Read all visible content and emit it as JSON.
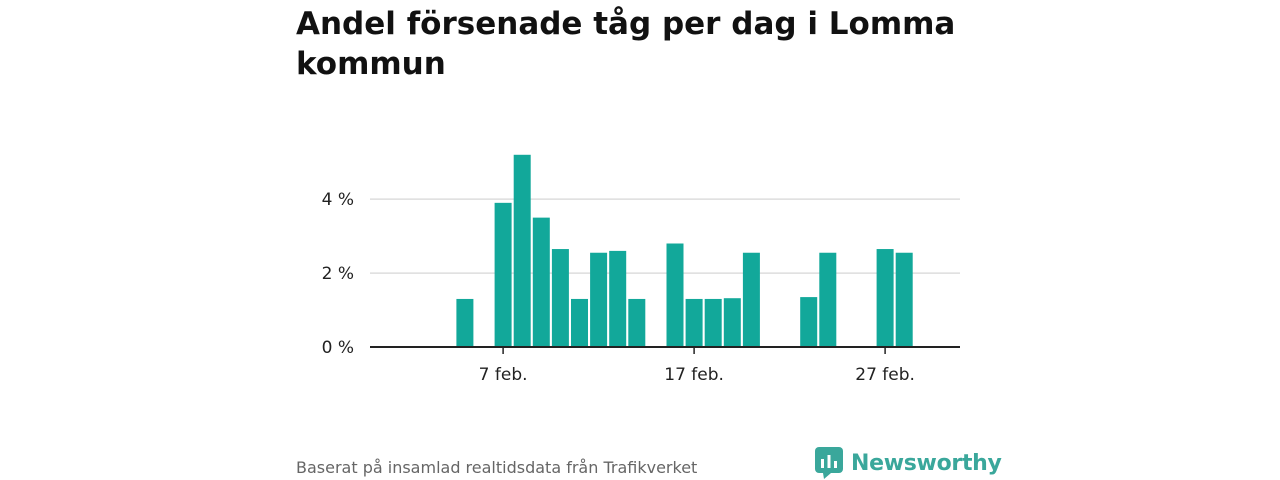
{
  "title": "Andel försenade tåg per dag i Lomma kommun",
  "source": "Baserat på insamlad realtidsdata från Trafikverket",
  "brand": {
    "name": "Newsworthy",
    "icon": "newsworthy-logo-icon",
    "color": "#3aa79b"
  },
  "colors": {
    "bar": "#12a89a",
    "grid": "#dddddd",
    "axis": "#222222"
  },
  "chart_data": {
    "type": "bar",
    "title": "Andel försenade tåg per dag i Lomma kommun",
    "xlabel": "",
    "ylabel": "",
    "ylim": [
      0,
      5.6
    ],
    "yticks": [
      0,
      2,
      4
    ],
    "ytick_labels": [
      "0 %",
      "2 %",
      "4 %"
    ],
    "x_days": [
      1,
      2,
      3,
      4,
      5,
      6,
      7,
      8,
      9,
      10,
      11,
      12,
      13,
      14,
      15,
      16,
      17,
      18,
      19,
      20,
      21,
      22,
      23,
      24,
      25,
      26,
      27,
      28
    ],
    "xticks": [
      7,
      17,
      27
    ],
    "xtick_labels": [
      "7 feb.",
      "17 feb.",
      "27 feb."
    ],
    "values": [
      0,
      0,
      0,
      0,
      1.3,
      0,
      3.9,
      5.2,
      3.5,
      2.65,
      1.3,
      2.55,
      2.6,
      1.3,
      0,
      2.8,
      1.3,
      1.3,
      1.32,
      2.55,
      0,
      0,
      1.35,
      2.55,
      0,
      0,
      2.65,
      2.55
    ],
    "unit": "%",
    "grid": true,
    "legend": "none"
  }
}
